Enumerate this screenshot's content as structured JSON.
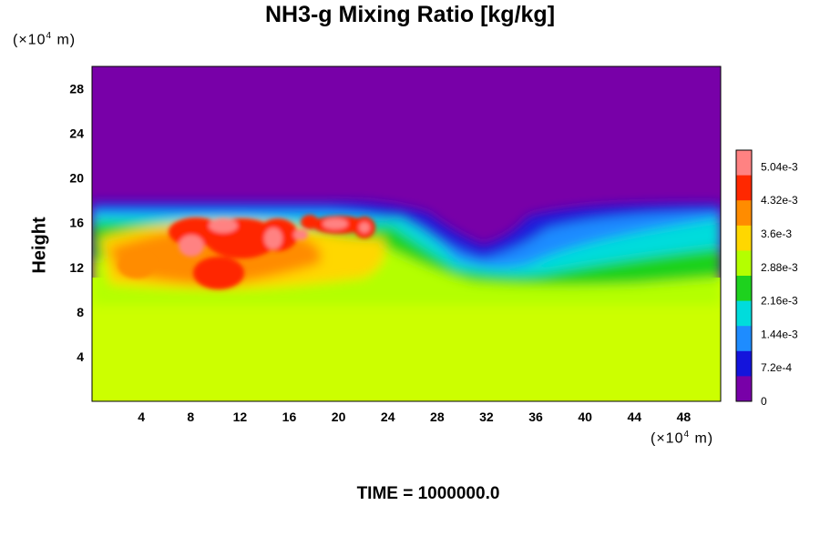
{
  "chart_data": {
    "type": "heatmap",
    "title": "NH3-g Mixing Ratio [kg/kg]",
    "ylabel": "Height",
    "x_unit": "(×10⁴ m)",
    "y_unit": "(×10⁴ m)",
    "x_unit_base": "(×10",
    "x_unit_exp": "4",
    "x_unit_tail": " m)",
    "xlim": [
      0,
      51
    ],
    "ylim": [
      0,
      30
    ],
    "x_ticks": [
      "4",
      "8",
      "12",
      "16",
      "20",
      "24",
      "28",
      "32",
      "36",
      "40",
      "44",
      "48"
    ],
    "y_ticks": [
      "4",
      "8",
      "12",
      "16",
      "20",
      "24",
      "28"
    ],
    "colorbar": {
      "min": 0,
      "max": 0.0054,
      "tick_labels": [
        "0",
        "7.2e-4",
        "1.44e-3",
        "2.16e-3",
        "2.88e-3",
        "3.6e-3",
        "4.32e-3",
        "5.04e-3"
      ],
      "colors": [
        "#7800a8",
        "#1414dc",
        "#1e8cff",
        "#00dcdc",
        "#1ed21e",
        "#b4ff00",
        "#ffd700",
        "#ff8c00",
        "#ff2800",
        "#ff8282"
      ]
    },
    "regions": [
      {
        "description": "lower layer",
        "y_range": [
          0,
          10
        ],
        "approx_value": 0.0037
      },
      {
        "description": "upper layer",
        "y_range": [
          17.5,
          30
        ],
        "approx_value": 0
      }
    ],
    "footer": "TIME = 1000000.0"
  }
}
